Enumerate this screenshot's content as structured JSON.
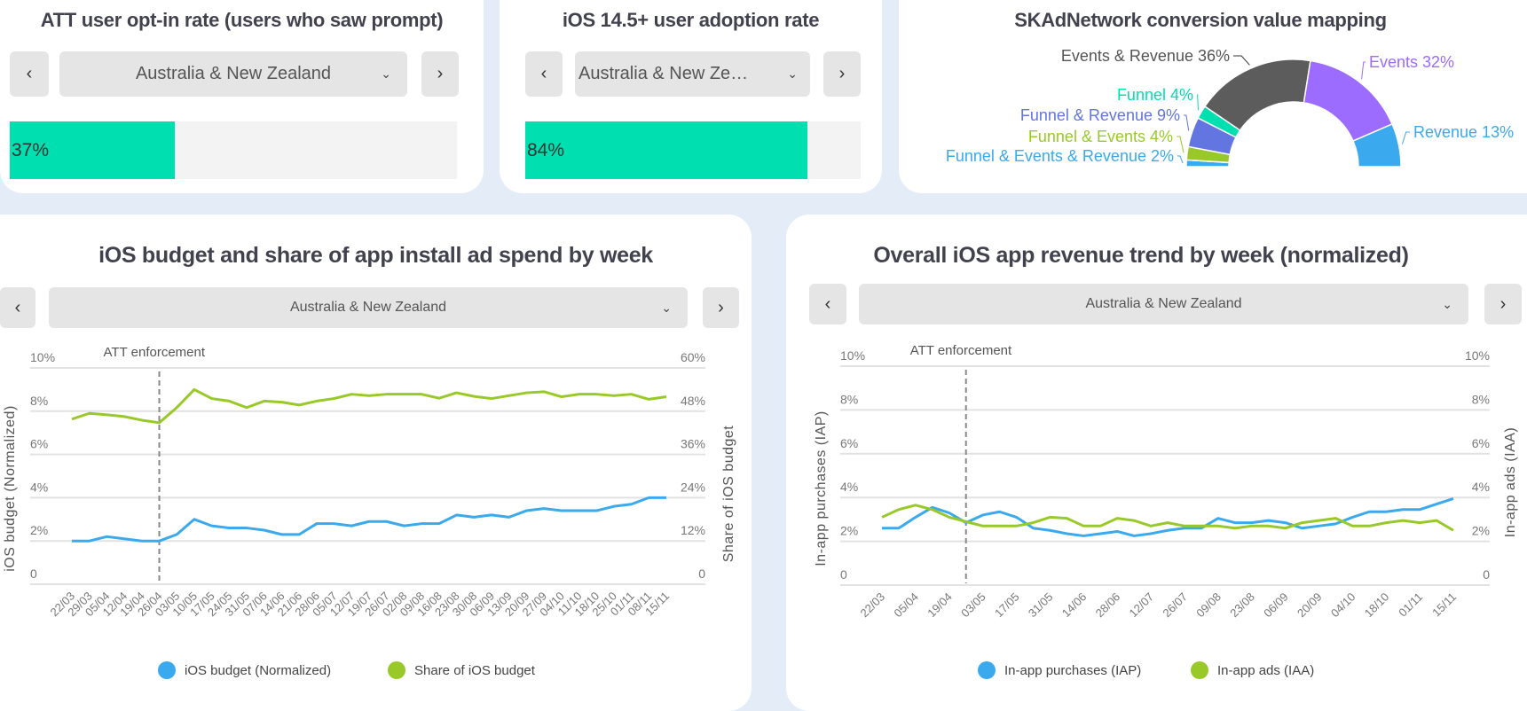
{
  "colors": {
    "accent": "#00dfb0",
    "blue": "#3aa9ee",
    "green": "#99c928",
    "purple": "#9c6bff",
    "dark": "#5c5c5c",
    "indigo": "#6275e0",
    "background": "#e4edf7"
  },
  "optin": {
    "title": "ATT user opt-in rate (users who saw prompt)",
    "region": "Australia & New Zealand",
    "value_label": "37%",
    "value": 37,
    "prev_icon": "chevron-left-icon",
    "next_icon": "chevron-right-icon",
    "prev": "‹",
    "next": "›",
    "chevron": "⌄"
  },
  "adoption": {
    "title": "iOS 14.5+ user adoption rate",
    "region": "Australia & New Zealand",
    "value_label": "84%",
    "value": 84,
    "prev": "‹",
    "next": "›",
    "chevron": "⌄"
  },
  "budget_panel": {
    "title": "iOS budget and share of app install ad spend by week",
    "region": "Australia & New Zealand",
    "prev": "‹",
    "next": "›",
    "chevron": "⌄"
  },
  "revenue_panel": {
    "title": "Overall iOS app revenue trend by week (normalized)",
    "region": "Australia & New Zealand",
    "prev": "‹",
    "next": "›",
    "chevron": "⌄"
  },
  "chart_data": [
    {
      "type": "pie",
      "title": "SKAdNetwork conversion value mapping",
      "shape": "half-donut",
      "slices": [
        {
          "label": "Funnel & Events & Revenue",
          "value": 2,
          "text": "Funnel & Events & Revenue 2%",
          "color": "#3aa9ee"
        },
        {
          "label": "Funnel & Events",
          "value": 4,
          "text": "Funnel & Events 4%",
          "color": "#99c928"
        },
        {
          "label": "Funnel & Revenue",
          "value": 9,
          "text": "Funnel & Revenue 9%",
          "color": "#6275e0"
        },
        {
          "label": "Funnel",
          "value": 4,
          "text": "Funnel 4%",
          "color": "#00dfb0"
        },
        {
          "label": "Events & Revenue",
          "value": 36,
          "text": "Events & Revenue 36%",
          "color": "#5c5c5c"
        },
        {
          "label": "Events",
          "value": 32,
          "text": "Events 32%",
          "color": "#9c6bff"
        },
        {
          "label": "Revenue",
          "value": 13,
          "text": "Revenue 13%",
          "color": "#3aa9ee"
        }
      ]
    },
    {
      "type": "line",
      "title": "iOS budget and share of app install ad spend by week",
      "x": [
        "22/03",
        "29/03",
        "05/04",
        "12/04",
        "19/04",
        "26/04",
        "03/05",
        "10/05",
        "17/05",
        "24/05",
        "31/05",
        "07/06",
        "14/06",
        "21/06",
        "28/06",
        "05/07",
        "12/07",
        "19/07",
        "26/07",
        "02/08",
        "09/08",
        "16/08",
        "23/08",
        "30/08",
        "06/09",
        "13/09",
        "20/09",
        "27/09",
        "04/10",
        "11/10",
        "18/10",
        "25/10",
        "01/11",
        "08/11",
        "15/11"
      ],
      "ylabel": "iOS budget (Normalized)",
      "y2label": "Share of iOS budget",
      "yticks": [
        "0",
        "2%",
        "4%",
        "6%",
        "8%",
        "10%"
      ],
      "y2ticks": [
        "0",
        "12%",
        "24%",
        "36%",
        "48%",
        "60%"
      ],
      "ylim": [
        0,
        10
      ],
      "y2lim": [
        0,
        60
      ],
      "grid": true,
      "legend": "bottom",
      "annotation": {
        "text": "ATT enforcement",
        "x": "26/04"
      },
      "series": [
        {
          "name": "iOS budget (Normalized)",
          "axis": "left",
          "color": "#3aa9ee",
          "values": [
            2.0,
            2.0,
            2.2,
            2.1,
            2.0,
            2.0,
            2.3,
            3.0,
            2.7,
            2.6,
            2.6,
            2.5,
            2.3,
            2.3,
            2.8,
            2.8,
            2.7,
            2.9,
            2.9,
            2.7,
            2.8,
            2.8,
            3.2,
            3.1,
            3.2,
            3.1,
            3.4,
            3.5,
            3.4,
            3.4,
            3.4,
            3.6,
            3.7,
            4.0,
            4.0
          ]
        },
        {
          "name": "Share of iOS budget",
          "axis": "right",
          "color": "#99c928",
          "values": [
            45.8,
            47.4,
            47.0,
            46.5,
            45.5,
            44.8,
            49.0,
            54.0,
            51.5,
            50.8,
            49.0,
            50.8,
            50.5,
            49.7,
            50.8,
            51.5,
            52.7,
            52.3,
            52.7,
            52.7,
            52.7,
            51.6,
            53.1,
            52.1,
            51.5,
            52.3,
            53.1,
            53.4,
            52.0,
            52.7,
            52.7,
            52.3,
            52.7,
            51.3,
            52.0
          ]
        }
      ]
    },
    {
      "type": "line",
      "title": "Overall iOS app revenue trend by week (normalized)",
      "x": [
        "22/03",
        "29/03",
        "05/04",
        "12/04",
        "19/04",
        "26/04",
        "03/05",
        "10/05",
        "17/05",
        "24/05",
        "31/05",
        "07/06",
        "14/06",
        "21/06",
        "28/06",
        "05/07",
        "12/07",
        "19/07",
        "26/07",
        "02/08",
        "09/08",
        "16/08",
        "23/08",
        "30/08",
        "06/09",
        "13/09",
        "20/09",
        "27/09",
        "04/10",
        "11/10",
        "18/10",
        "25/10",
        "01/11",
        "08/11",
        "15/11"
      ],
      "xticks": [
        "22/03",
        "05/04",
        "19/04",
        "03/05",
        "17/05",
        "31/05",
        "14/06",
        "28/06",
        "12/07",
        "26/07",
        "09/08",
        "23/08",
        "06/09",
        "20/09",
        "04/10",
        "18/10",
        "01/11",
        "15/11"
      ],
      "ylabel": "In-app purchases (IAP)",
      "y2label": "In-app ads (IAA)",
      "yticks": [
        "0",
        "2%",
        "4%",
        "6%",
        "8%",
        "10%"
      ],
      "y2ticks": [
        "0",
        "2%",
        "4%",
        "6%",
        "8%",
        "10%"
      ],
      "ylim": [
        0,
        10
      ],
      "y2lim": [
        0,
        10
      ],
      "grid": true,
      "legend": "bottom",
      "annotation": {
        "text": "ATT enforcement",
        "x": "26/04"
      },
      "series": [
        {
          "name": "In-app purchases (IAP)",
          "axis": "left",
          "color": "#3aa9ee",
          "values": [
            2.6,
            2.6,
            3.1,
            3.55,
            3.3,
            2.85,
            3.2,
            3.35,
            3.1,
            2.6,
            2.5,
            2.35,
            2.25,
            2.35,
            2.45,
            2.25,
            2.35,
            2.5,
            2.6,
            2.6,
            3.05,
            2.85,
            2.85,
            2.95,
            2.85,
            2.6,
            2.7,
            2.8,
            3.1,
            3.35,
            3.35,
            3.45,
            3.45,
            3.7,
            3.95
          ]
        },
        {
          "name": "In-app ads (IAA)",
          "axis": "right",
          "color": "#99c928",
          "values": [
            3.1,
            3.45,
            3.65,
            3.45,
            3.1,
            2.9,
            2.7,
            2.7,
            2.7,
            2.85,
            3.1,
            3.05,
            2.7,
            2.7,
            3.05,
            2.95,
            2.7,
            2.85,
            2.7,
            2.7,
            2.7,
            2.6,
            2.7,
            2.7,
            2.6,
            2.85,
            2.95,
            3.05,
            2.7,
            2.7,
            2.85,
            2.95,
            2.85,
            2.95,
            2.5
          ]
        }
      ]
    }
  ]
}
